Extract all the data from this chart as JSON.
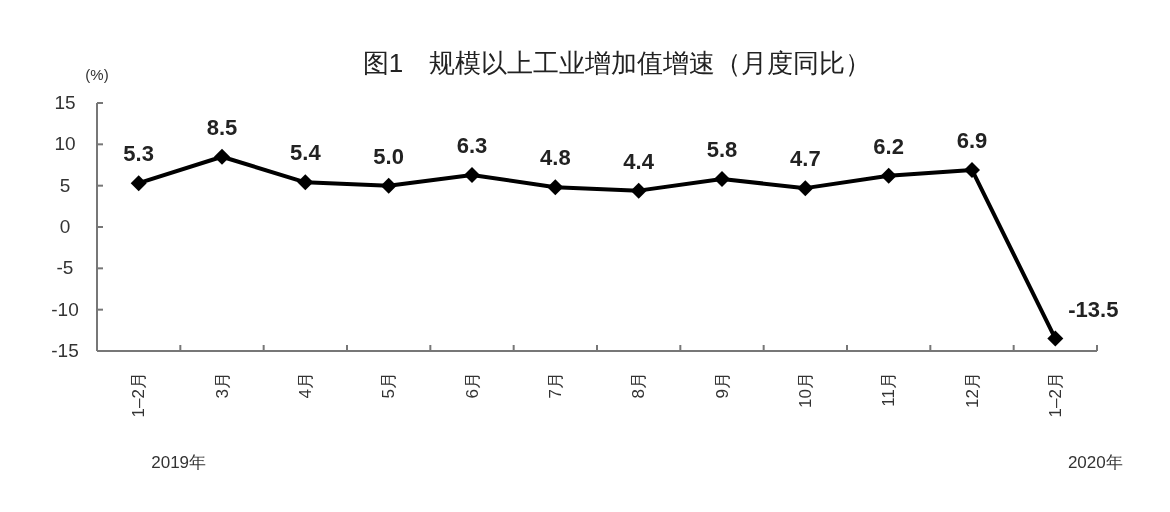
{
  "chart_data": {
    "type": "line",
    "title": "图1　规模以上工业增加值增速（月度同比）",
    "ylabel": "(%)",
    "categories": [
      "1–2月",
      "3月",
      "4月",
      "5月",
      "6月",
      "7月",
      "8月",
      "9月",
      "10月",
      "11月",
      "12月",
      "1–2月"
    ],
    "series": [
      {
        "color": "#000000",
        "values": [
          5.3,
          8.5,
          5.4,
          5.0,
          6.3,
          4.8,
          4.4,
          5.8,
          4.7,
          6.2,
          6.9,
          -13.5
        ],
        "value_labels": [
          "5.3",
          "8.5",
          "5.4",
          "5.0",
          "6.3",
          "4.8",
          "4.4",
          "5.8",
          "4.7",
          "6.2",
          "6.9",
          "-13.5"
        ]
      }
    ],
    "ylim": [
      -15,
      15
    ],
    "yticks": [
      -15,
      -10,
      -5,
      0,
      5,
      10,
      15
    ],
    "marker": "diamond",
    "line_style": "solid",
    "annotations": [
      "2019年",
      "2020年"
    ]
  }
}
